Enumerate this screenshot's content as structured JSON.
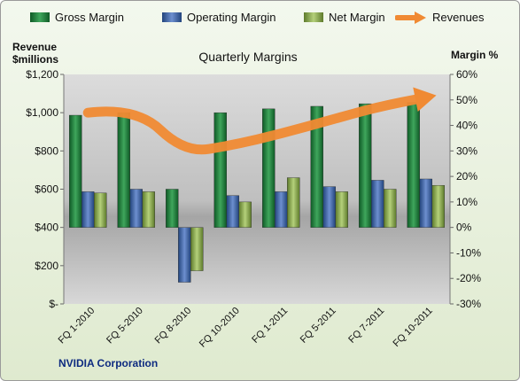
{
  "legend": [
    {
      "label": "Gross Margin",
      "color": "#1d7c3a"
    },
    {
      "label": "Operating Margin",
      "color": "#3a64a8"
    },
    {
      "label": "Net Margin",
      "color": "#8fae4f"
    },
    {
      "label": "Revenues",
      "color": "#f08a33"
    }
  ],
  "left_axis_title": {
    "line1": "Revenue",
    "line2": "$millions"
  },
  "right_axis_title": "Margin %",
  "company": "NVIDIA Corporation",
  "chart_data": {
    "type": "bar",
    "title": "Quarterly Margins",
    "categories": [
      "FQ 1-2010",
      "FQ 5-2010",
      "FQ 8-2010",
      "FQ 10-2010",
      "FQ 1-2011",
      "FQ 5-2011",
      "FQ 7-2011",
      "FQ 10-2011"
    ],
    "series": [
      {
        "name": "Gross Margin",
        "axis": "right",
        "color": "#1d7c3a",
        "values": [
          44,
          45,
          15,
          45,
          46.5,
          47.5,
          48.5,
          49
        ]
      },
      {
        "name": "Operating Margin",
        "axis": "right",
        "color": "#3a64a8",
        "values": [
          14,
          15,
          -21.5,
          12.5,
          14,
          16,
          18.5,
          19
        ]
      },
      {
        "name": "Net Margin",
        "axis": "right",
        "color": "#8fae4f",
        "values": [
          13.5,
          14,
          -17,
          10,
          19.5,
          14,
          15,
          16.5
        ]
      },
      {
        "name": "Revenues",
        "axis": "left",
        "type": "line",
        "color": "#f08a33",
        "values": [
          1000,
          1030,
          790,
          830,
          890,
          960,
          1030,
          1080
        ]
      }
    ],
    "y_left": {
      "min": 0,
      "max": 1200,
      "ticks": [
        0,
        200,
        400,
        600,
        800,
        1000,
        1200
      ],
      "tick_labels": [
        "$-",
        "$200",
        "$400",
        "$600",
        "$800",
        "$1,000",
        "$1,200"
      ]
    },
    "y_right": {
      "min": -30,
      "max": 60,
      "ticks": [
        -30,
        -20,
        -10,
        0,
        10,
        20,
        30,
        40,
        50,
        60
      ],
      "tick_labels": [
        "-30%",
        "-20%",
        "-10%",
        "0%",
        "10%",
        "20%",
        "30%",
        "40%",
        "50%",
        "60%"
      ]
    },
    "grid": false,
    "legend_position": "top"
  }
}
